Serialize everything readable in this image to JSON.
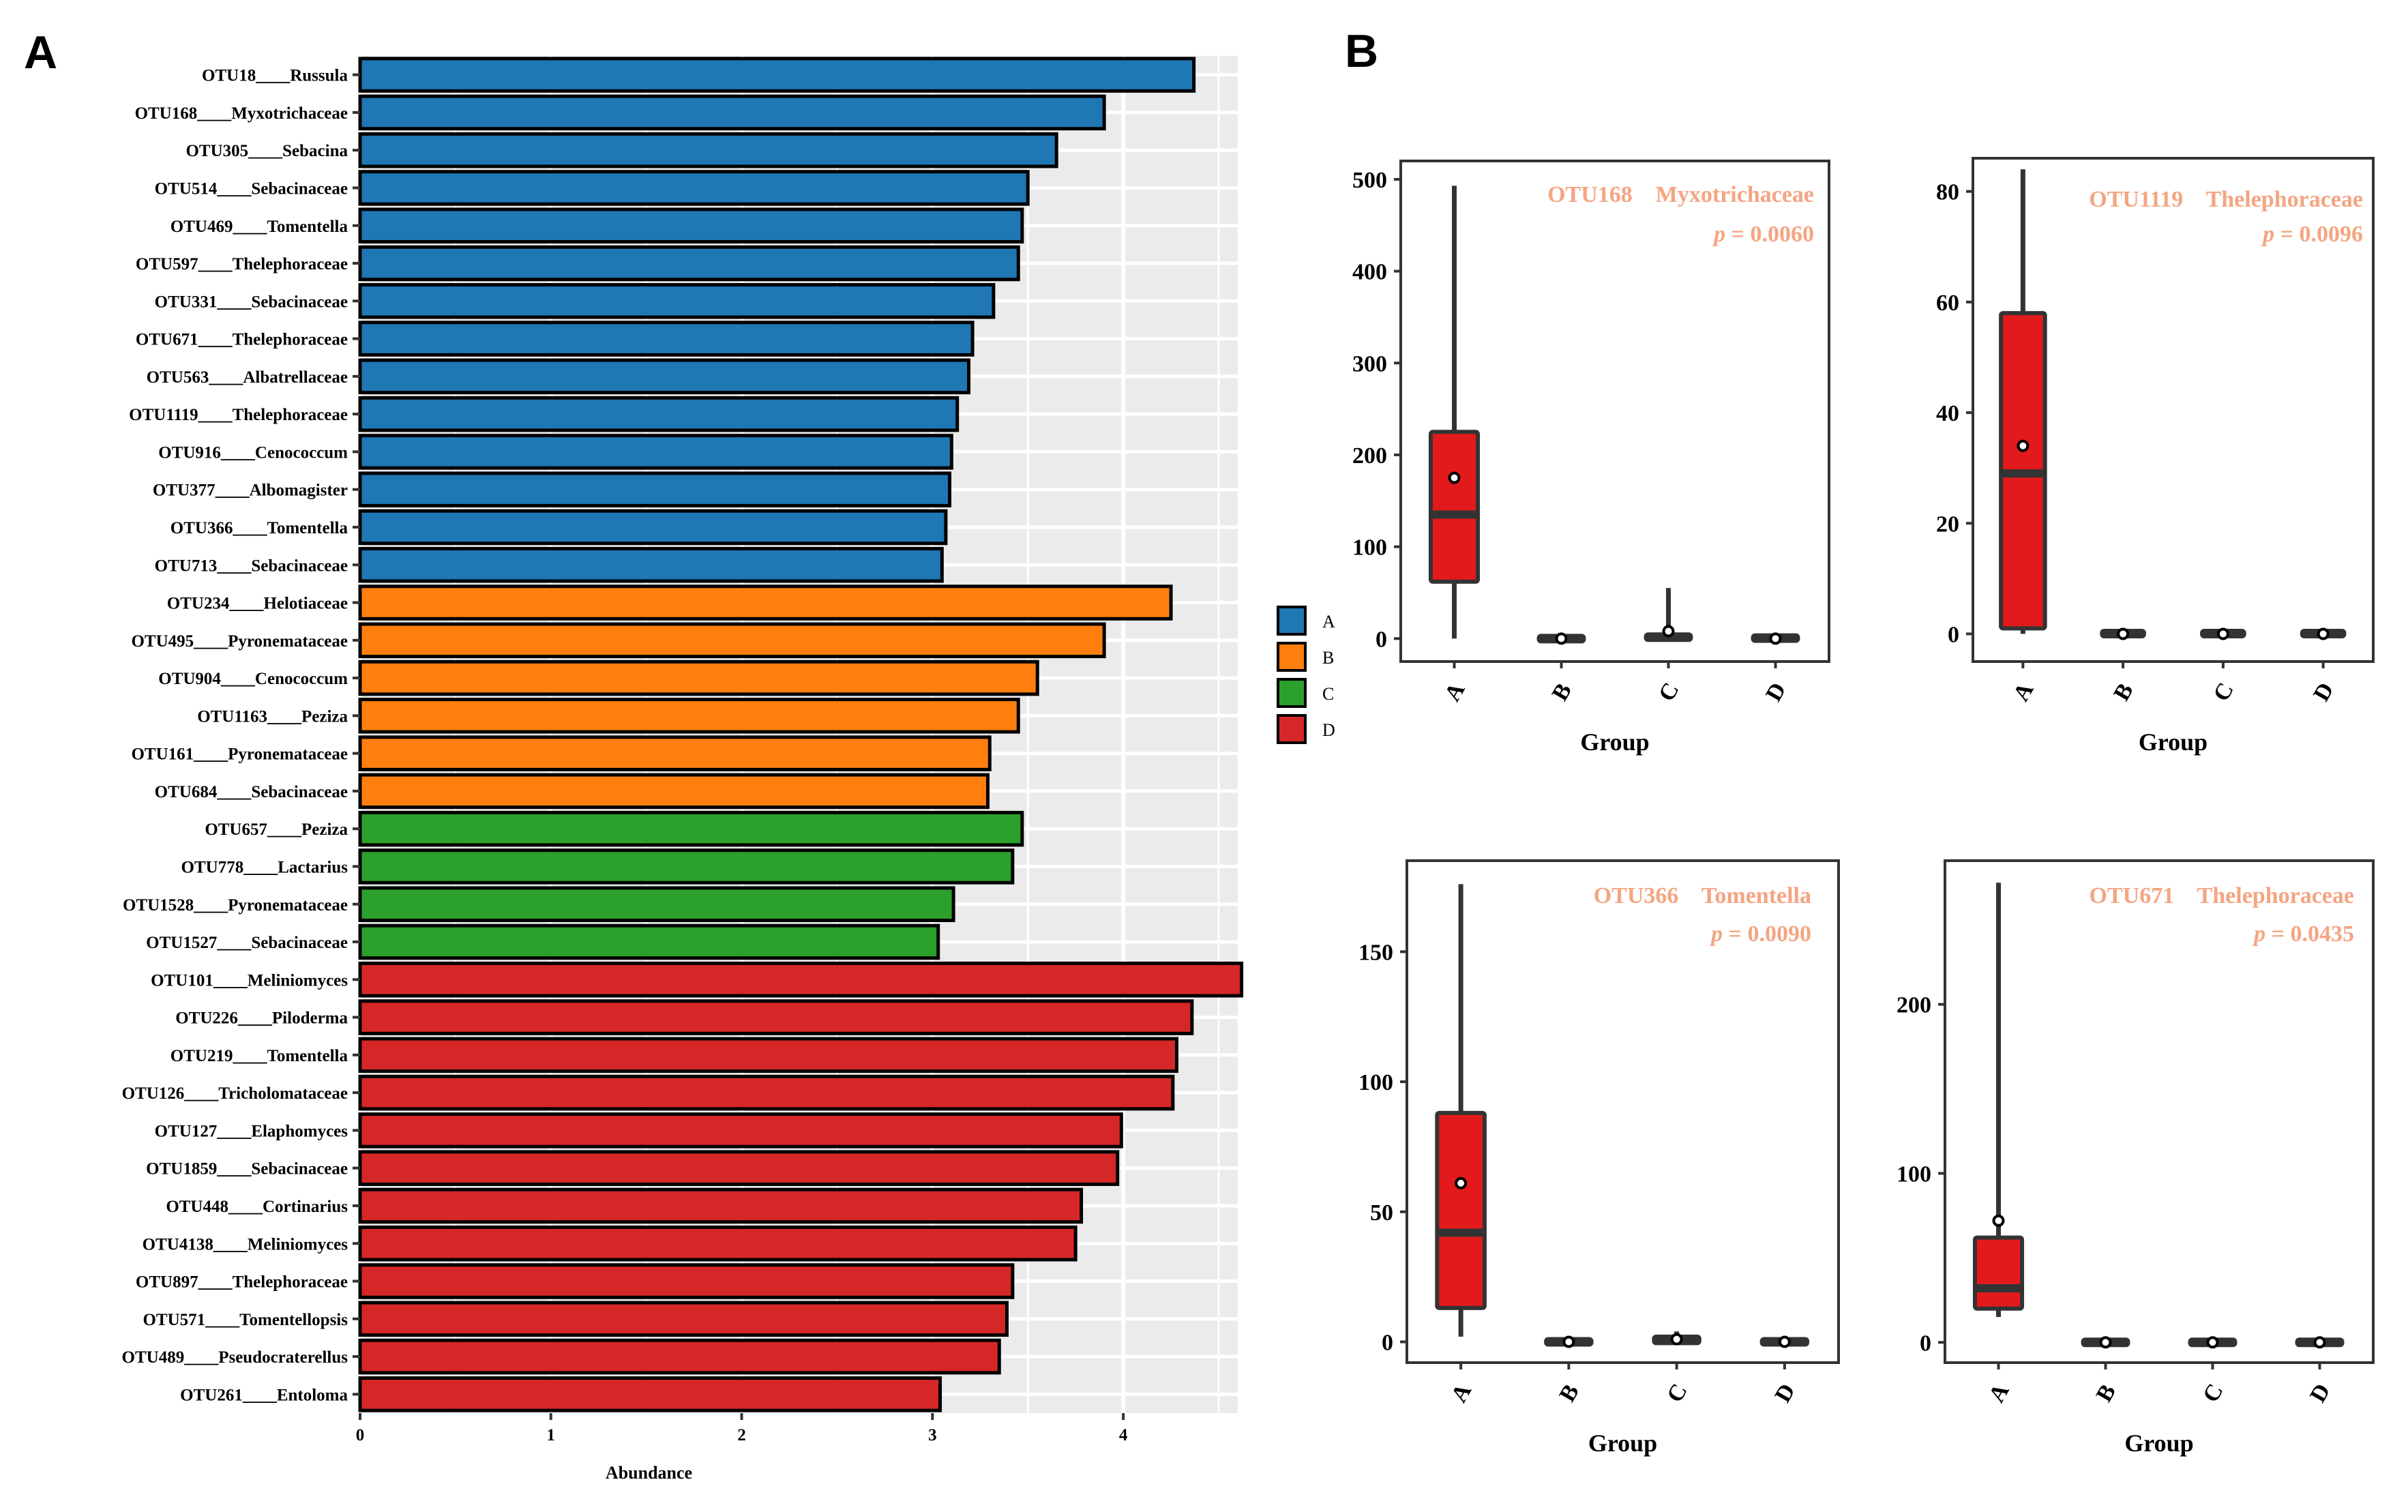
{
  "panels": {
    "a_label": "A",
    "b_label": "B"
  },
  "colors": {
    "A": "#1f77b4",
    "B": "#ff7f0e",
    "C": "#2ca02c",
    "D": "#d62728",
    "box_fill": "#e31a1c",
    "annotation": "#f4a582",
    "panel_bg": "#ebebeb"
  },
  "chart_data": [
    {
      "type": "bar",
      "orientation": "horizontal",
      "xlabel": "Abundance",
      "xticks": [
        "0",
        "1",
        "2",
        "3",
        "4"
      ],
      "xlim": [
        0,
        4.6
      ],
      "legend": {
        "position": "right",
        "entries": [
          "A",
          "B",
          "C",
          "D"
        ]
      },
      "bars": [
        {
          "label": "OTU18____Russula",
          "group": "A",
          "value": 4.37
        },
        {
          "label": "OTU168____Myxotrichaceae",
          "group": "A",
          "value": 3.9
        },
        {
          "label": "OTU305____Sebacina",
          "group": "A",
          "value": 3.65
        },
        {
          "label": "OTU514____Sebacinaceae",
          "group": "A",
          "value": 3.5
        },
        {
          "label": "OTU469____Tomentella",
          "group": "A",
          "value": 3.47
        },
        {
          "label": "OTU597____Thelephoraceae",
          "group": "A",
          "value": 3.45
        },
        {
          "label": "OTU331____Sebacinaceae",
          "group": "A",
          "value": 3.32
        },
        {
          "label": "OTU671____Thelephoraceae",
          "group": "A",
          "value": 3.21
        },
        {
          "label": "OTU563____Albatrellaceae",
          "group": "A",
          "value": 3.19
        },
        {
          "label": "OTU1119____Thelephoraceae",
          "group": "A",
          "value": 3.13
        },
        {
          "label": "OTU916____Cenococcum",
          "group": "A",
          "value": 3.1
        },
        {
          "label": "OTU377____Albomagister",
          "group": "A",
          "value": 3.09
        },
        {
          "label": "OTU366____Tomentella",
          "group": "A",
          "value": 3.07
        },
        {
          "label": "OTU713____Sebacinaceae",
          "group": "A",
          "value": 3.05
        },
        {
          "label": "OTU234____Helotiaceae",
          "group": "B",
          "value": 4.25
        },
        {
          "label": "OTU495____Pyronemataceae",
          "group": "B",
          "value": 3.9
        },
        {
          "label": "OTU904____Cenococcum",
          "group": "B",
          "value": 3.55
        },
        {
          "label": "OTU1163____Peziza",
          "group": "B",
          "value": 3.45
        },
        {
          "label": "OTU161____Pyronemataceae",
          "group": "B",
          "value": 3.3
        },
        {
          "label": "OTU684____Sebacinaceae",
          "group": "B",
          "value": 3.29
        },
        {
          "label": "OTU657____Peziza",
          "group": "C",
          "value": 3.47
        },
        {
          "label": "OTU778____Lactarius",
          "group": "C",
          "value": 3.42
        },
        {
          "label": "OTU1528____Pyronemataceae",
          "group": "C",
          "value": 3.11
        },
        {
          "label": "OTU1527____Sebacinaceae",
          "group": "C",
          "value": 3.03
        },
        {
          "label": "OTU101____Meliniomyces",
          "group": "D",
          "value": 4.62
        },
        {
          "label": "OTU226____Piloderma",
          "group": "D",
          "value": 4.36
        },
        {
          "label": "OTU219____Tomentella",
          "group": "D",
          "value": 4.28
        },
        {
          "label": "OTU126____Tricholomataceae",
          "group": "D",
          "value": 4.26
        },
        {
          "label": "OTU127____Elaphomyces",
          "group": "D",
          "value": 3.99
        },
        {
          "label": "OTU1859____Sebacinaceae",
          "group": "D",
          "value": 3.97
        },
        {
          "label": "OTU448____Cortinarius",
          "group": "D",
          "value": 3.78
        },
        {
          "label": "OTU4138____Meliniomyces",
          "group": "D",
          "value": 3.75
        },
        {
          "label": "OTU897____Thelephoraceae",
          "group": "D",
          "value": 3.42
        },
        {
          "label": "OTU571____Tomentellopsis",
          "group": "D",
          "value": 3.39
        },
        {
          "label": "OTU489____Pseudocraterellus",
          "group": "D",
          "value": 3.35
        },
        {
          "label": "OTU261____Entoloma",
          "group": "D",
          "value": 3.04
        }
      ]
    },
    {
      "type": "box",
      "title": "OTU168    Myxotrichaceae",
      "p_label": "p",
      "p_value": " = 0.0060",
      "xlabel": "Group",
      "categories": [
        "A",
        "B",
        "C",
        "D"
      ],
      "yticks": [
        0,
        100,
        200,
        300,
        400,
        500
      ],
      "ylim": [
        -25,
        520
      ],
      "boxes": [
        {
          "group": "A",
          "min": 0,
          "q1": 62,
          "median": 135,
          "q3": 225,
          "max": 493,
          "mean": 175
        },
        {
          "group": "B",
          "min": -2,
          "q1": -1,
          "median": 0,
          "q3": 1,
          "max": 2,
          "mean": 0
        },
        {
          "group": "C",
          "min": -2,
          "q1": -1,
          "median": 0,
          "q3": 4,
          "max": 55,
          "mean": 8
        },
        {
          "group": "D",
          "min": -3,
          "q1": -2,
          "median": 0,
          "q3": 3,
          "max": 4,
          "mean": 0
        }
      ]
    },
    {
      "type": "box",
      "title": "OTU1119    Thelephoraceae",
      "p_label": "p",
      "p_value": " = 0.0096",
      "xlabel": "Group",
      "categories": [
        "A",
        "B",
        "C",
        "D"
      ],
      "yticks": [
        0,
        20,
        40,
        60,
        80
      ],
      "ylim": [
        -5,
        86
      ],
      "boxes": [
        {
          "group": "A",
          "min": 0,
          "q1": 1,
          "median": 29,
          "q3": 58,
          "max": 84,
          "mean": 34
        },
        {
          "group": "B",
          "min": -0.2,
          "q1": -0.1,
          "median": 0,
          "q3": 0.2,
          "max": 0.5,
          "mean": 0
        },
        {
          "group": "C",
          "min": -0.2,
          "q1": -0.1,
          "median": 0,
          "q3": 0.2,
          "max": 0.4,
          "mean": 0
        },
        {
          "group": "D",
          "min": -0.2,
          "q1": -0.1,
          "median": 0,
          "q3": 0.2,
          "max": 0.5,
          "mean": 0
        }
      ]
    },
    {
      "type": "box",
      "title": "OTU366    Tomentella",
      "p_label": "p",
      "p_value": " = 0.0090",
      "xlabel": "Group",
      "categories": [
        "A",
        "B",
        "C",
        "D"
      ],
      "yticks": [
        0,
        50,
        100,
        150
      ],
      "ylim": [
        -8,
        185
      ],
      "boxes": [
        {
          "group": "A",
          "min": 2,
          "q1": 13,
          "median": 42,
          "q3": 88,
          "max": 176,
          "mean": 61
        },
        {
          "group": "B",
          "min": -1,
          "q1": -0.5,
          "median": 0,
          "q3": 0.5,
          "max": 1,
          "mean": 0
        },
        {
          "group": "C",
          "min": -1,
          "q1": -0.5,
          "median": 1,
          "q3": 2,
          "max": 4,
          "mean": 1
        },
        {
          "group": "D",
          "min": -1,
          "q1": -0.5,
          "median": 0,
          "q3": 0.5,
          "max": 1,
          "mean": 0
        }
      ]
    },
    {
      "type": "box",
      "title": "OTU671    Thelephoraceae",
      "p_label": "p",
      "p_value": " = 0.0435",
      "xlabel": "Group",
      "categories": [
        "A",
        "B",
        "C",
        "D"
      ],
      "yticks": [
        0,
        100,
        200
      ],
      "ylim": [
        -12,
        285
      ],
      "boxes": [
        {
          "group": "A",
          "min": 15,
          "q1": 20,
          "median": 32,
          "q3": 62,
          "max": 272,
          "mean": 72
        },
        {
          "group": "B",
          "min": -1,
          "q1": -0.5,
          "median": 0,
          "q3": 0.5,
          "max": 1,
          "mean": 0
        },
        {
          "group": "C",
          "min": -1,
          "q1": -0.5,
          "median": 0,
          "q3": 0.5,
          "max": 1,
          "mean": 0
        },
        {
          "group": "D",
          "min": -1,
          "q1": -0.5,
          "median": 0,
          "q3": 0.5,
          "max": 1,
          "mean": 0
        }
      ]
    }
  ]
}
